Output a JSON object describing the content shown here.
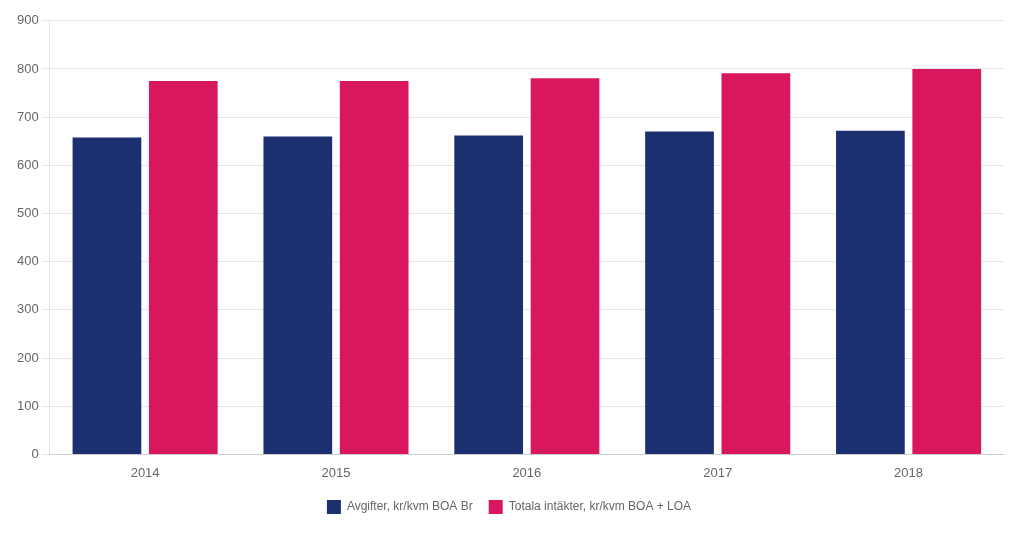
{
  "chart_data": {
    "type": "bar",
    "categories": [
      "2014",
      "2015",
      "2016",
      "2017",
      "2018"
    ],
    "series": [
      {
        "name": "Avgifter, kr/kvm BOA Br",
        "color": "#1c2f6e",
        "values": [
          658,
          660,
          662,
          670,
          672
        ]
      },
      {
        "name": "Totala intäkter, kr/kvm BOA + LOA",
        "color": "#d8175e",
        "values": [
          775,
          775,
          781,
          791,
          800
        ]
      }
    ],
    "ylim": [
      0,
      900
    ],
    "yticks": [
      0,
      100,
      200,
      300,
      400,
      500,
      600,
      700,
      800,
      900
    ],
    "grid": true,
    "legend": "bottom"
  }
}
